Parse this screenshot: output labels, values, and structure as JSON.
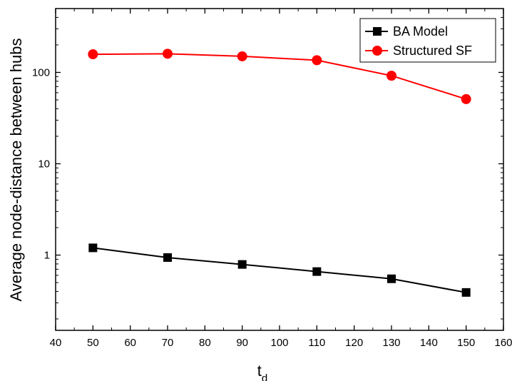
{
  "chart_data": {
    "type": "line",
    "x": [
      50,
      70,
      90,
      110,
      130,
      150
    ],
    "series": [
      {
        "name": "BA Model",
        "color": "#000000",
        "marker": "square",
        "values": [
          1.2,
          0.94,
          0.79,
          0.66,
          0.55,
          0.39
        ]
      },
      {
        "name": "Structured SF",
        "color": "#ff0000",
        "marker": "circle",
        "values": [
          158,
          160,
          150,
          136,
          92,
          51
        ]
      }
    ],
    "xlabel": "t",
    "xlabel_subscript": "d",
    "ylabel": "Average node-distance between hubs",
    "xlim": [
      40,
      160
    ],
    "ylim": [
      0.15,
      500
    ],
    "yscale": "log",
    "xticks": [
      40,
      50,
      60,
      70,
      80,
      90,
      100,
      110,
      120,
      130,
      140,
      150,
      160
    ],
    "yticks": [
      1,
      10,
      100
    ],
    "ytick_labels": [
      "1",
      "10",
      "100"
    ],
    "grid": false,
    "legend_position": "top-right"
  }
}
